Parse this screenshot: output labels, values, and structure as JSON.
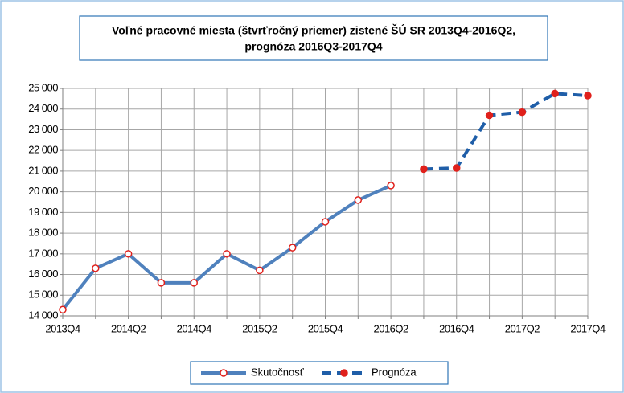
{
  "chart_data": {
    "type": "line",
    "title": [
      "Voľné pracovné miesta (štvrťročný priemer) zistené ŠÚ SR 2013Q4-2016Q2,",
      "prognóza 2016Q3-2017Q4"
    ],
    "categories": [
      "2013Q4",
      null,
      "2014Q2",
      null,
      "2014Q4",
      null,
      "2015Q2",
      null,
      "2015Q4",
      null,
      "2016Q2",
      null,
      "2016Q4",
      null,
      "2017Q2",
      null,
      "2017Q4"
    ],
    "series": [
      {
        "name": "Skutočnosť",
        "color": "#4f81bd",
        "marker_color": "#e0201b",
        "dashed": false,
        "marker_filled": false,
        "values": [
          14300,
          16300,
          17000,
          15600,
          15600,
          17000,
          16200,
          17300,
          18550,
          19600,
          20300,
          null,
          null,
          null,
          null,
          null,
          null
        ]
      },
      {
        "name": "Prognóza",
        "color": "#1f5ea8",
        "marker_color": "#e0201b",
        "dashed": true,
        "marker_filled": true,
        "values": [
          null,
          null,
          null,
          null,
          null,
          null,
          null,
          null,
          null,
          null,
          null,
          21100,
          21150,
          23700,
          23850,
          24750,
          24650
        ]
      }
    ],
    "ylim": [
      14000,
      25000
    ],
    "yticks": [
      {
        "value": 14000,
        "label": "14 000"
      },
      {
        "value": 15000,
        "label": "15 000"
      },
      {
        "value": 16000,
        "label": "16 000"
      },
      {
        "value": 17000,
        "label": "17 000"
      },
      {
        "value": 18000,
        "label": "18 000"
      },
      {
        "value": 19000,
        "label": "19 000"
      },
      {
        "value": 20000,
        "label": "20 000"
      },
      {
        "value": 21000,
        "label": "21 000"
      },
      {
        "value": 22000,
        "label": "22 000"
      },
      {
        "value": 23000,
        "label": "23 000"
      },
      {
        "value": 24000,
        "label": "24 000"
      },
      {
        "value": 25000,
        "label": "25 000"
      }
    ],
    "grid": true,
    "legend": "bottom"
  }
}
